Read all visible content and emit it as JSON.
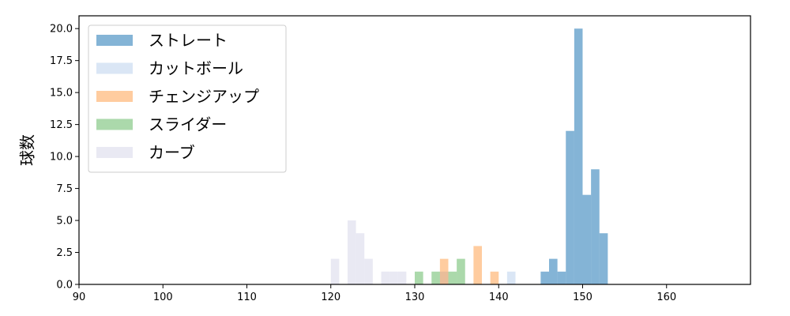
{
  "chart_data": {
    "type": "bar",
    "xlabel": "",
    "ylabel": "球数",
    "xlim": [
      90,
      170
    ],
    "ylim": [
      0,
      21
    ],
    "x_ticks": [
      90,
      100,
      110,
      120,
      130,
      140,
      150,
      160
    ],
    "y_ticks": [
      0.0,
      2.5,
      5.0,
      7.5,
      10.0,
      12.5,
      15.0,
      17.5,
      20.0
    ],
    "y_tick_labels": [
      "0.0",
      "2.5",
      "5.0",
      "7.5",
      "10.0",
      "12.5",
      "15.0",
      "17.5",
      "20.0"
    ],
    "grid": false,
    "legend_position": "top-left",
    "bin_width": 1,
    "series": [
      {
        "name": "ストレート",
        "color": "#1f77b4",
        "alpha": 0.55,
        "bins": [
          {
            "x": 145,
            "count": 1
          },
          {
            "x": 146,
            "count": 2
          },
          {
            "x": 147,
            "count": 1
          },
          {
            "x": 148,
            "count": 12
          },
          {
            "x": 149,
            "count": 20
          },
          {
            "x": 150,
            "count": 7
          },
          {
            "x": 151,
            "count": 9
          },
          {
            "x": 152,
            "count": 4
          }
        ]
      },
      {
        "name": "カットボール",
        "color": "#aec7e8",
        "alpha": 0.45,
        "bins": [
          {
            "x": 133,
            "count": 1
          },
          {
            "x": 141,
            "count": 1
          }
        ]
      },
      {
        "name": "チェンジアップ",
        "color": "#ff7f0e",
        "alpha": 0.4,
        "bins": [
          {
            "x": 133,
            "count": 2
          },
          {
            "x": 137,
            "count": 3
          },
          {
            "x": 139,
            "count": 1
          }
        ]
      },
      {
        "name": "スライダー",
        "color": "#2ca02c",
        "alpha": 0.4,
        "bins": [
          {
            "x": 130,
            "count": 1
          },
          {
            "x": 132,
            "count": 1
          },
          {
            "x": 134,
            "count": 1
          },
          {
            "x": 135,
            "count": 2
          }
        ]
      },
      {
        "name": "カーブ",
        "color": "#c7c7e2",
        "alpha": 0.4,
        "bins": [
          {
            "x": 120,
            "count": 2
          },
          {
            "x": 122,
            "count": 5
          },
          {
            "x": 123,
            "count": 4
          },
          {
            "x": 124,
            "count": 2
          },
          {
            "x": 126,
            "count": 1
          },
          {
            "x": 127,
            "count": 1
          },
          {
            "x": 128,
            "count": 1
          }
        ]
      }
    ]
  }
}
